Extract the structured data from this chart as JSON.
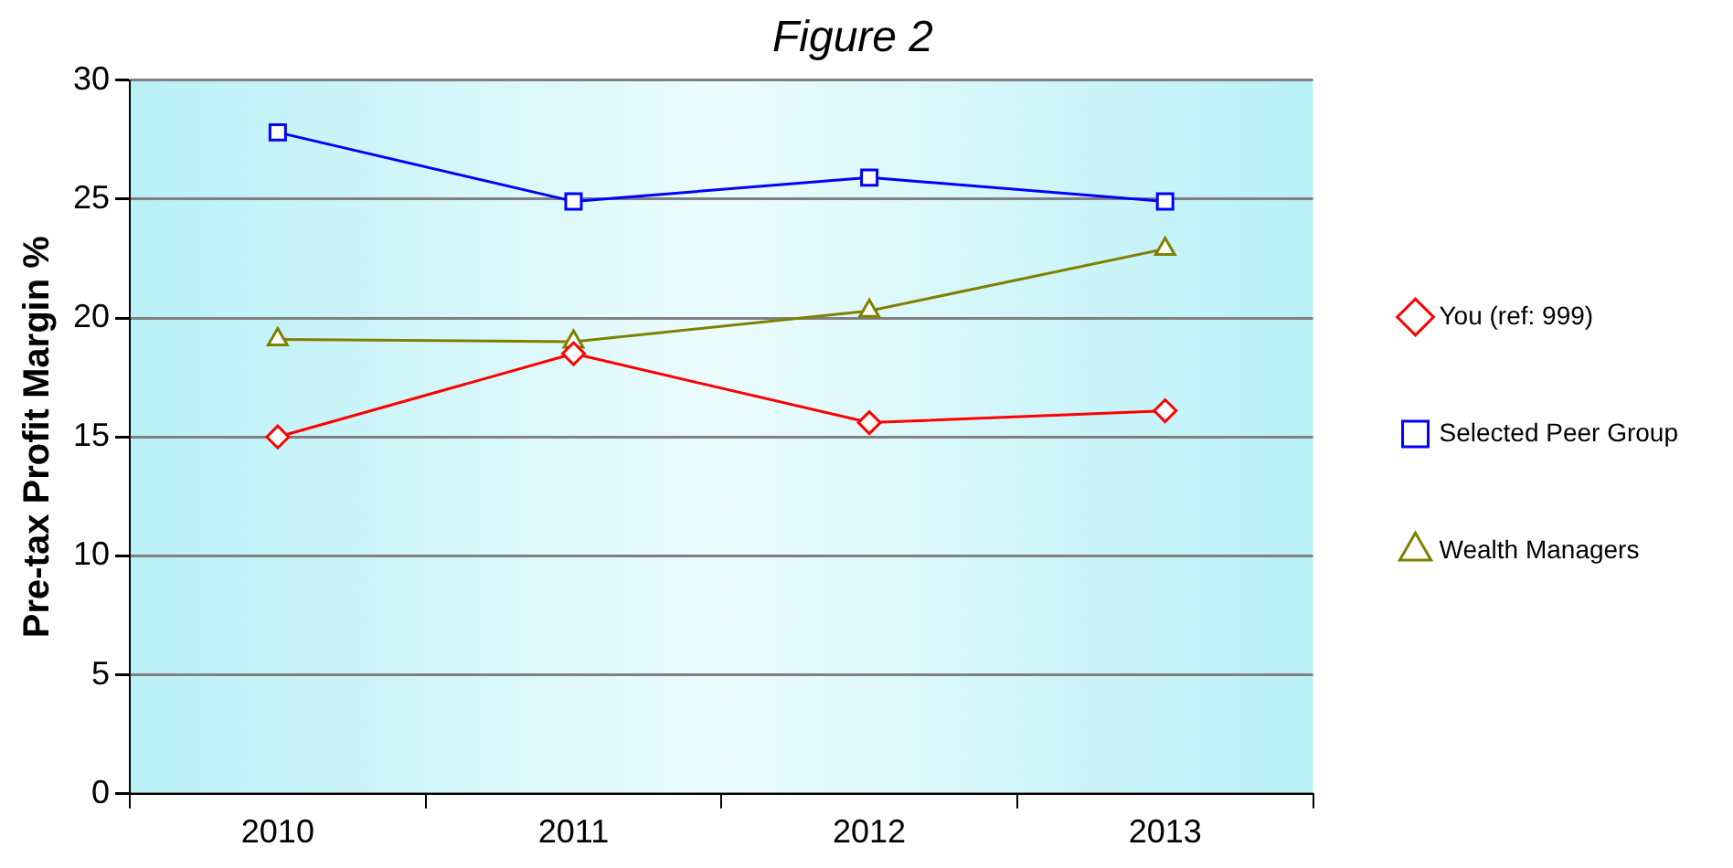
{
  "chart_data": {
    "type": "line",
    "title": "Figure 2",
    "ylabel": "Pre-tax Profit Margin %",
    "categories": [
      "2010",
      "2011",
      "2012",
      "2013"
    ],
    "series": [
      {
        "name": "You (ref: 999)",
        "color": "#ff0000",
        "marker": "diamond",
        "values": [
          15.0,
          18.5,
          15.6,
          16.1
        ]
      },
      {
        "name": "Selected Peer Group",
        "color": "#0000ff",
        "marker": "square",
        "values": [
          27.8,
          24.9,
          25.9,
          24.9
        ]
      },
      {
        "name": "Wealth Managers",
        "color": "#808000",
        "marker": "triangle",
        "values": [
          19.1,
          19.0,
          20.3,
          22.9
        ]
      }
    ],
    "ylim": [
      0,
      30
    ],
    "yticks": [
      0,
      5,
      10,
      15,
      20,
      25,
      30
    ],
    "grid": "y",
    "legend": "right"
  }
}
